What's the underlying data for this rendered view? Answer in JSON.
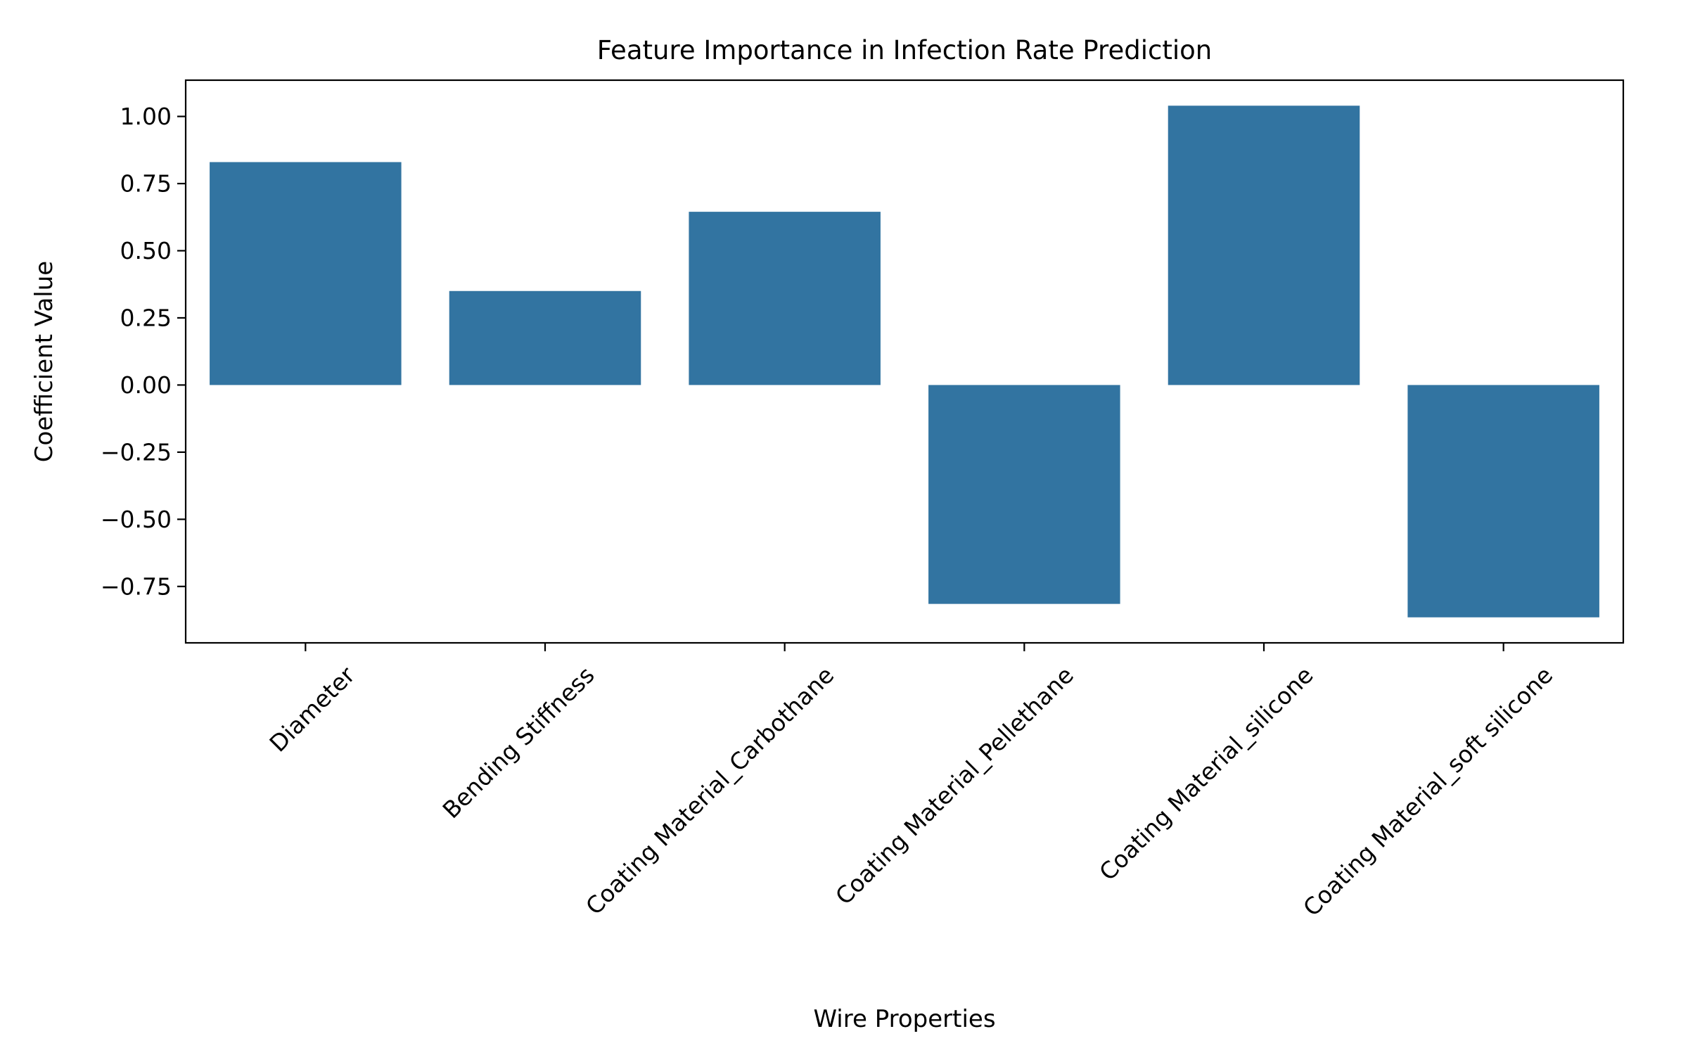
{
  "chart_data": {
    "type": "bar",
    "title": "Feature Importance in Infection Rate Prediction",
    "xlabel": "Wire Properties",
    "ylabel": "Coefficient Value",
    "categories": [
      "Diameter",
      "Bending Stiffness",
      "Coating Material_Carbothane",
      "Coating Material_Pellethane",
      "Coating Material_silicone",
      "Coating Material_soft silicone"
    ],
    "values": [
      0.83,
      0.35,
      0.645,
      -0.815,
      1.04,
      -0.865
    ],
    "ylim": [
      -0.96,
      1.135
    ],
    "yticks": [
      -0.75,
      -0.5,
      -0.25,
      0.0,
      0.25,
      0.5,
      0.75,
      1.0
    ],
    "ytick_labels": [
      "−0.75",
      "−0.50",
      "−0.25",
      "0.00",
      "0.25",
      "0.50",
      "0.75",
      "1.00"
    ],
    "bar_color": "#3274a1",
    "grid": false,
    "legend": "none"
  }
}
